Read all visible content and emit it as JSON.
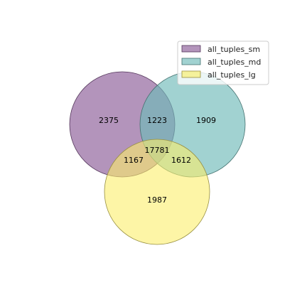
{
  "chart_data": {
    "type": "venn",
    "title": "",
    "sets": [
      {
        "name": "all_tuples_sm",
        "color": "#8b5a96"
      },
      {
        "name": "all_tuples_md",
        "color": "#6fbab8"
      },
      {
        "name": "all_tuples_lg",
        "color": "#fbef6b"
      }
    ],
    "regions": [
      {
        "sets": [
          "all_tuples_sm"
        ],
        "value": "2375"
      },
      {
        "sets": [
          "all_tuples_md"
        ],
        "value": "1909"
      },
      {
        "sets": [
          "all_tuples_lg"
        ],
        "value": "1987"
      },
      {
        "sets": [
          "all_tuples_sm",
          "all_tuples_md"
        ],
        "value": "1223"
      },
      {
        "sets": [
          "all_tuples_sm",
          "all_tuples_lg"
        ],
        "value": "1167"
      },
      {
        "sets": [
          "all_tuples_md",
          "all_tuples_lg"
        ],
        "value": "1612"
      },
      {
        "sets": [
          "all_tuples_sm",
          "all_tuples_md",
          "all_tuples_lg"
        ],
        "value": "17781"
      }
    ],
    "legend_position": "top-right"
  }
}
